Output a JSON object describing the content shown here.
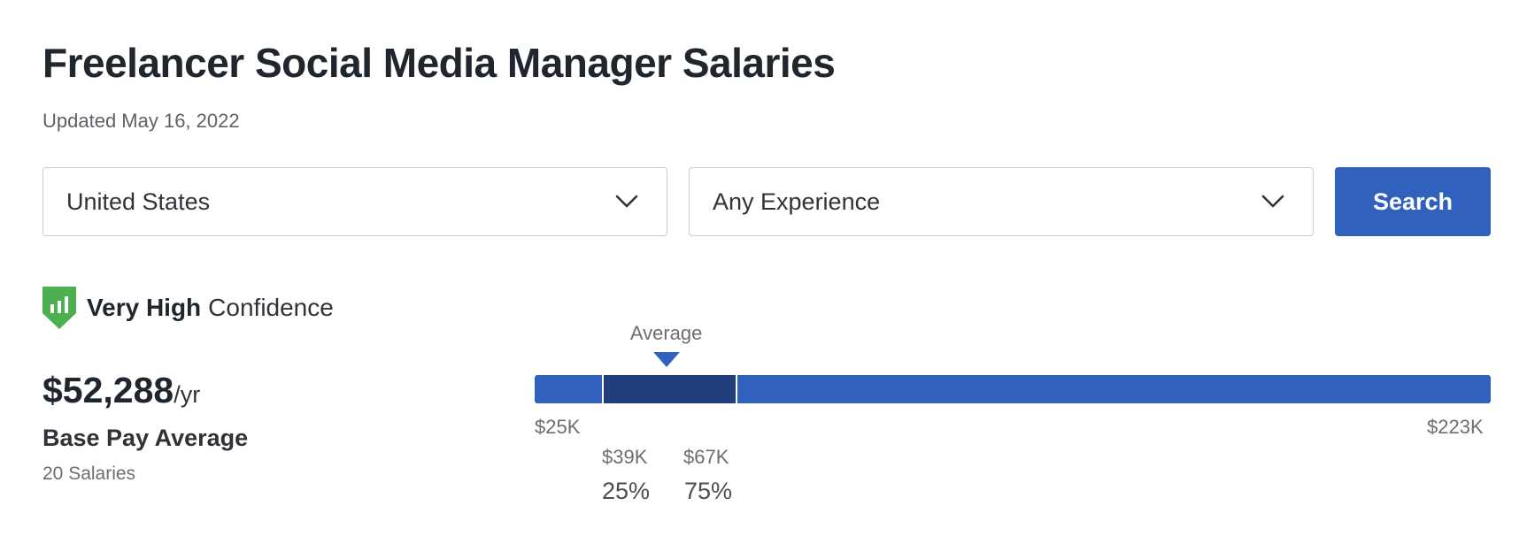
{
  "header": {
    "title": "Freelancer Social Media Manager Salaries",
    "updated": "Updated May 16, 2022"
  },
  "filters": {
    "location": {
      "value": "United States",
      "icon": "chevron-down-icon"
    },
    "experience": {
      "value": "Any Experience",
      "icon": "chevron-down-icon"
    },
    "search_label": "Search"
  },
  "confidence": {
    "level": "Very High",
    "suffix": "Confidence",
    "icon": "shield-bar-chart-icon",
    "icon_color": "#4caf50"
  },
  "pay": {
    "amount": "$52,288",
    "unit": "/yr",
    "label": "Base Pay Average",
    "count": "20 Salaries"
  },
  "range": {
    "average_label": "Average",
    "min": 25,
    "max": 223,
    "p25": 39,
    "p75": 67,
    "average": 52.288,
    "min_label": "$25K",
    "max_label": "$223K",
    "p25_label": "$39K",
    "p75_label": "$67K",
    "p25_pct": "25%",
    "p75_pct": "75%"
  },
  "colors": {
    "accent": "#2f61bd",
    "bar_mid": "#213e7d",
    "text_dark": "#20262e",
    "text_muted": "#6b6e73"
  }
}
